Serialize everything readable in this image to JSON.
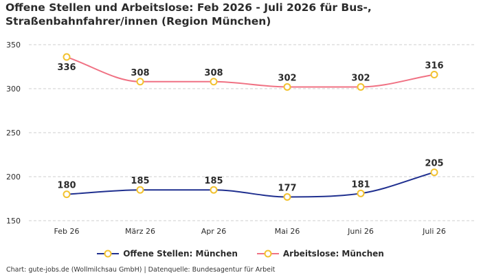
{
  "title_lines": [
    "Offene Stellen und Arbeitslose: Feb 2026 - Juli 2026 für Bus-,",
    "Straßenbahnfahrer/innen (Region München)"
  ],
  "footer": "Chart: gute-jobs.de (Wollmilchsau GmbH) | Datenquelle: Bundesagentur für Arbeit",
  "colors": {
    "offene": "#1f2f8f",
    "arbeitslose": "#f07183",
    "marker": "#f2c230",
    "grid": "#cccccc",
    "text": "#2b2b2b"
  },
  "chart_data": {
    "type": "line",
    "categories": [
      "Feb 26",
      "März 26",
      "Apr 26",
      "Mai 26",
      "Juni 26",
      "Juli 26"
    ],
    "y_ticks": [
      "150",
      "200",
      "250",
      "300",
      "350"
    ],
    "ylim": [
      150,
      350
    ],
    "grid": "horizontal-dashed",
    "legend_position": "bottom-center",
    "series": [
      {
        "key": "offene",
        "name": "Offene Stellen: München",
        "values": [
          180,
          185,
          185,
          177,
          181,
          205
        ],
        "labels": [
          "180",
          "185",
          "185",
          "177",
          "181",
          "205"
        ]
      },
      {
        "key": "arbeitslose",
        "name": "Arbeitslose: München",
        "values": [
          336,
          308,
          308,
          302,
          302,
          316
        ],
        "labels": [
          "336",
          "308",
          "308",
          "302",
          "302",
          "316"
        ]
      }
    ]
  }
}
